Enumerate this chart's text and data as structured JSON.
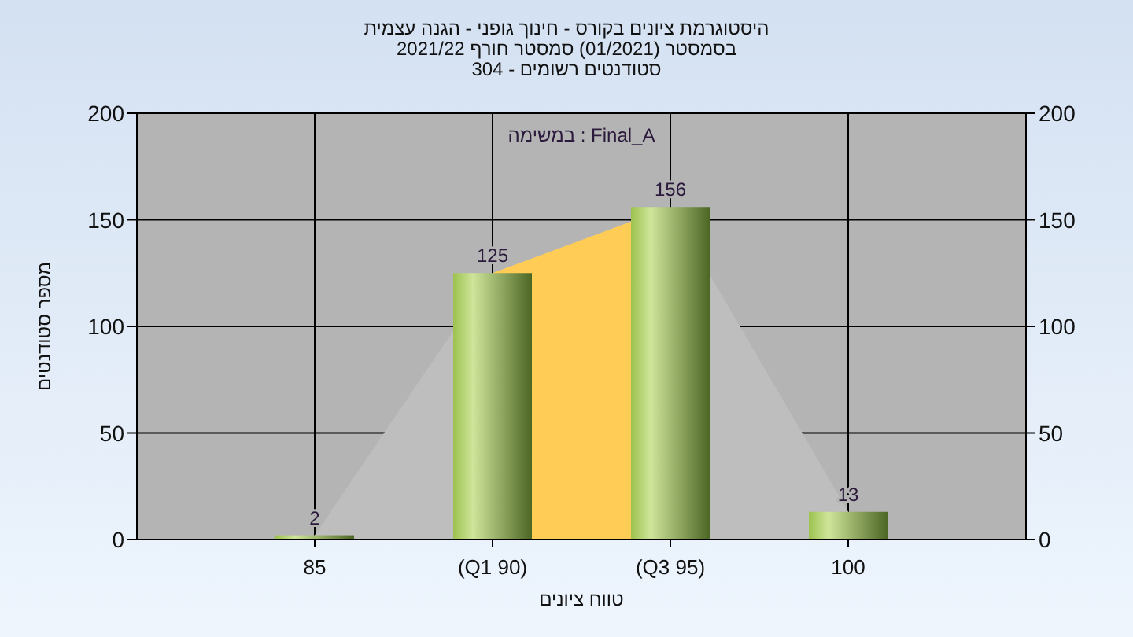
{
  "chart_data": {
    "type": "bar",
    "title": "היסטוגרמת ציונים בקורס - חינוך גופני - הגנה עצמית",
    "subtitle": "בסמסטר  (01/2021)  סמסטר חורף 2021/22\nסטודנטים רשומים - 304",
    "xlabel": "טווח ציונים",
    "ylabel": "מספר סטודנטים",
    "annotations": [
      "במשימה : Final_A"
    ],
    "categories": [
      "85",
      "(Q1 90)",
      "(Q3 95)",
      "100"
    ],
    "series": [
      {
        "type": "area",
        "color": "#bebebe",
        "values": [
          2,
          125,
          156,
          13
        ]
      },
      {
        "type": "area",
        "color": "#ffcc55",
        "values": [
          null,
          125,
          156,
          null
        ]
      },
      {
        "color": "#9cc24e",
        "values": [
          2,
          125,
          156,
          13
        ],
        "value_labels": [
          "2",
          "125",
          "156",
          "13"
        ]
      }
    ],
    "ylim": [
      0,
      200
    ],
    "yticks": [
      0,
      50,
      100,
      150,
      200
    ],
    "y2lim": [
      0,
      200
    ],
    "y2ticks": [
      0,
      50,
      100,
      150,
      200
    ],
    "grid": true
  }
}
